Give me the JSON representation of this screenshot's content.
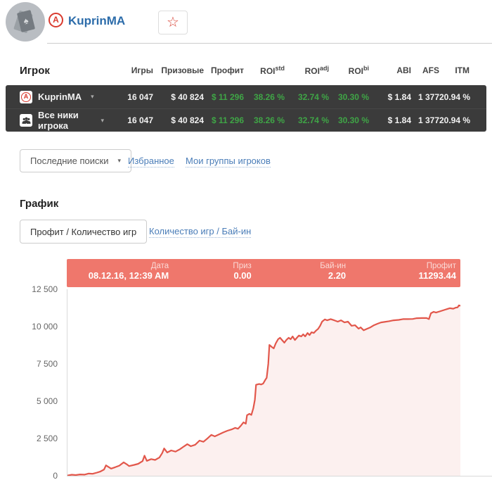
{
  "colors": {
    "accent_red": "#e2574b",
    "tooltip_salmon": "#ef776c",
    "chart_fill": "#fcf0ee",
    "dark_row_bg": "#3b3b3b",
    "positive_green": "#3fa546",
    "link_blue": "#4a7db8",
    "name_blue": "#2c6caa"
  },
  "header": {
    "player_name": "KuprinMA",
    "site_logo_letter": "A",
    "star_glyph": "☆",
    "avatar_card_glyph": "♠"
  },
  "table": {
    "columns": [
      {
        "label": "Игрок"
      },
      {
        "label": "Игры"
      },
      {
        "label": "Призовые"
      },
      {
        "label": "Профит"
      },
      {
        "label": "ROI",
        "sup": "std"
      },
      {
        "label": "ROI",
        "sup": "adj"
      },
      {
        "label": "ROI",
        "sup": "bi"
      },
      {
        "label": "ABI"
      },
      {
        "label": "AFS"
      },
      {
        "label": "ITM"
      }
    ],
    "rows": [
      {
        "name": "KuprinMA",
        "caret": "▾",
        "icon": "site-logo-a",
        "games": "16 047",
        "prizes": "$ 40 824",
        "profit": "$ 11 296",
        "roi_std": "38.26 %",
        "roi_adj": "32.74 %",
        "roi_bi": "30.30 %",
        "abi": "$ 1.84",
        "afs": "1 377",
        "itm": "20.94 %"
      },
      {
        "name": "Все ники игрока",
        "caret": "▾",
        "icon": "player-group",
        "games": "16 047",
        "prizes": "$ 40 824",
        "profit": "$ 11 296",
        "roi_std": "38.26 %",
        "roi_adj": "32.74 %",
        "roi_bi": "30.30 %",
        "abi": "$ 1.84",
        "afs": "1 377",
        "itm": "20.94 %"
      }
    ]
  },
  "actions": {
    "recent_searches": "Последние поиски",
    "caret": "▾",
    "favorites": "Избранное",
    "my_groups": "Мои группы игроков"
  },
  "chart_section": {
    "title": "График",
    "tabs": [
      {
        "label": "Профит / Количество игр",
        "active": true
      },
      {
        "label": "Количество игр / Бай-ин",
        "active": false
      }
    ],
    "tooltip": {
      "columns": [
        {
          "label": "Дата",
          "value": "08.12.16, 12:39 AM"
        },
        {
          "label": "Приз",
          "value": "0.00"
        },
        {
          "label": "Бай-ин",
          "value": "2.20"
        },
        {
          "label": "Профит",
          "value": "11293.44"
        }
      ]
    }
  },
  "chart_data": {
    "type": "area",
    "title": "Профит / Количество игр",
    "xlabel": "",
    "ylabel": "Профит",
    "ylim": [
      0,
      12500
    ],
    "yticks": [
      12500,
      10000,
      7500,
      5000,
      2500,
      0
    ],
    "ytick_labels": [
      "12 500",
      "10 000",
      "7 500",
      "5 000",
      "2 500",
      "0"
    ],
    "grid": false,
    "legend": "none",
    "line_color": "#e2574b",
    "fill_color": "rgba(226,87,75,0.09)",
    "hover_point": {
      "date": "08.12.16, 12:39 AM",
      "prize": 0.0,
      "buyin": 2.2,
      "profit": 11293.44
    },
    "points": [
      [
        0.0,
        20
      ],
      [
        0.011,
        70
      ],
      [
        0.021,
        45
      ],
      [
        0.032,
        90
      ],
      [
        0.043,
        75
      ],
      [
        0.054,
        150
      ],
      [
        0.064,
        130
      ],
      [
        0.075,
        210
      ],
      [
        0.084,
        290
      ],
      [
        0.093,
        420
      ],
      [
        0.098,
        700
      ],
      [
        0.104,
        600
      ],
      [
        0.111,
        480
      ],
      [
        0.121,
        570
      ],
      [
        0.132,
        680
      ],
      [
        0.143,
        900
      ],
      [
        0.152,
        750
      ],
      [
        0.157,
        650
      ],
      [
        0.17,
        730
      ],
      [
        0.18,
        800
      ],
      [
        0.191,
        980
      ],
      [
        0.196,
        1350
      ],
      [
        0.202,
        1000
      ],
      [
        0.213,
        1120
      ],
      [
        0.223,
        1060
      ],
      [
        0.234,
        1220
      ],
      [
        0.241,
        1520
      ],
      [
        0.246,
        1830
      ],
      [
        0.254,
        1560
      ],
      [
        0.264,
        1700
      ],
      [
        0.275,
        1620
      ],
      [
        0.286,
        1780
      ],
      [
        0.296,
        1960
      ],
      [
        0.305,
        2120
      ],
      [
        0.314,
        1980
      ],
      [
        0.325,
        2080
      ],
      [
        0.336,
        2360
      ],
      [
        0.346,
        2280
      ],
      [
        0.357,
        2520
      ],
      [
        0.366,
        2740
      ],
      [
        0.375,
        2640
      ],
      [
        0.386,
        2780
      ],
      [
        0.396,
        2900
      ],
      [
        0.407,
        3020
      ],
      [
        0.418,
        3110
      ],
      [
        0.427,
        3210
      ],
      [
        0.434,
        3150
      ],
      [
        0.441,
        3350
      ],
      [
        0.448,
        3580
      ],
      [
        0.454,
        3490
      ],
      [
        0.457,
        4060
      ],
      [
        0.463,
        4150
      ],
      [
        0.468,
        4080
      ],
      [
        0.473,
        4530
      ],
      [
        0.477,
        5100
      ],
      [
        0.48,
        6100
      ],
      [
        0.488,
        6150
      ],
      [
        0.493,
        6120
      ],
      [
        0.498,
        6180
      ],
      [
        0.504,
        6450
      ],
      [
        0.507,
        6560
      ],
      [
        0.511,
        7500
      ],
      [
        0.514,
        8770
      ],
      [
        0.52,
        8630
      ],
      [
        0.525,
        8540
      ],
      [
        0.53,
        8870
      ],
      [
        0.536,
        9150
      ],
      [
        0.541,
        9250
      ],
      [
        0.546,
        9100
      ],
      [
        0.552,
        8920
      ],
      [
        0.557,
        9100
      ],
      [
        0.563,
        9250
      ],
      [
        0.568,
        9150
      ],
      [
        0.573,
        9340
      ],
      [
        0.579,
        9100
      ],
      [
        0.584,
        9250
      ],
      [
        0.589,
        9400
      ],
      [
        0.595,
        9340
      ],
      [
        0.6,
        9480
      ],
      [
        0.605,
        9340
      ],
      [
        0.611,
        9570
      ],
      [
        0.616,
        9430
      ],
      [
        0.621,
        9620
      ],
      [
        0.627,
        9570
      ],
      [
        0.632,
        9710
      ],
      [
        0.638,
        9850
      ],
      [
        0.643,
        10050
      ],
      [
        0.648,
        10330
      ],
      [
        0.655,
        10480
      ],
      [
        0.661,
        10420
      ],
      [
        0.67,
        10500
      ],
      [
        0.679,
        10420
      ],
      [
        0.688,
        10330
      ],
      [
        0.696,
        10420
      ],
      [
        0.705,
        10280
      ],
      [
        0.714,
        10330
      ],
      [
        0.723,
        10050
      ],
      [
        0.732,
        10090
      ],
      [
        0.741,
        9860
      ],
      [
        0.746,
        9950
      ],
      [
        0.754,
        9750
      ],
      [
        0.763,
        9860
      ],
      [
        0.771,
        9950
      ],
      [
        0.78,
        10090
      ],
      [
        0.789,
        10190
      ],
      [
        0.798,
        10280
      ],
      [
        0.807,
        10310
      ],
      [
        0.818,
        10360
      ],
      [
        0.83,
        10420
      ],
      [
        0.843,
        10450
      ],
      [
        0.854,
        10500
      ],
      [
        0.866,
        10500
      ],
      [
        0.879,
        10510
      ],
      [
        0.889,
        10560
      ],
      [
        0.902,
        10570
      ],
      [
        0.914,
        10570
      ],
      [
        0.92,
        10500
      ],
      [
        0.925,
        10890
      ],
      [
        0.932,
        10990
      ],
      [
        0.938,
        10940
      ],
      [
        0.95,
        11040
      ],
      [
        0.961,
        11130
      ],
      [
        0.973,
        11230
      ],
      [
        0.982,
        11200
      ],
      [
        0.988,
        11270
      ],
      [
        0.993,
        11290
      ],
      [
        0.996,
        11420
      ],
      [
        1.0,
        11400
      ]
    ]
  }
}
